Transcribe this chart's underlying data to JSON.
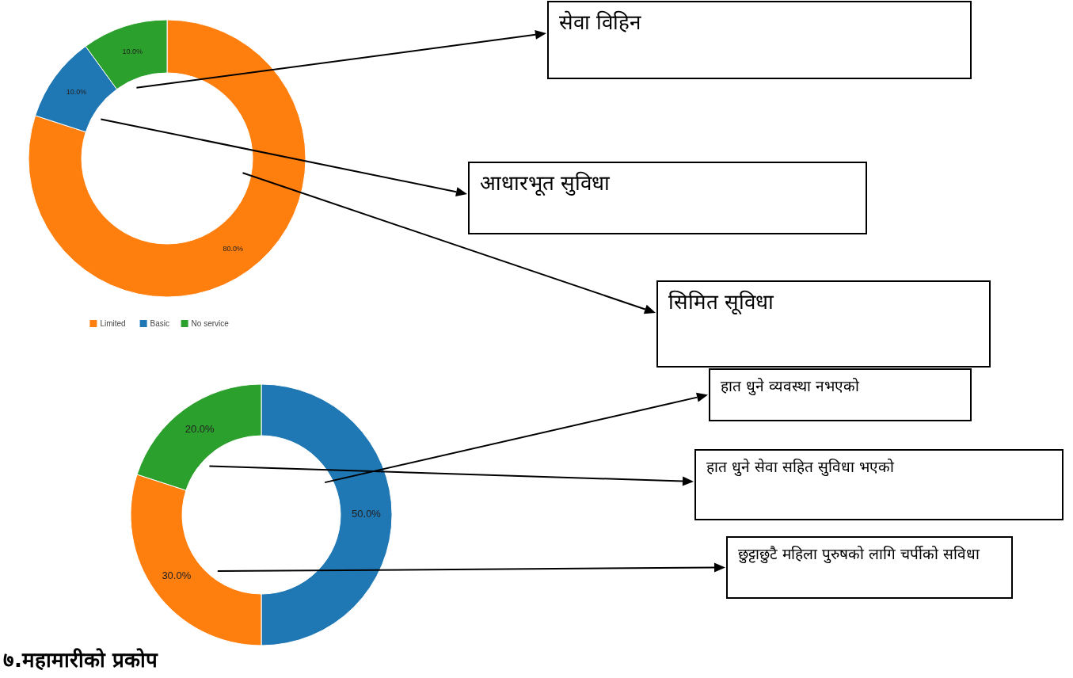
{
  "chart_data": [
    {
      "type": "donut",
      "categories": [
        "Limited",
        "Basic",
        "No service"
      ],
      "values": [
        80,
        10,
        10
      ],
      "colors": [
        "#ff7f0e",
        "#1f77b4",
        "#2ca02c"
      ],
      "value_labels": [
        "80.0%",
        "10.0%",
        "10.0%"
      ],
      "legend": "bottom",
      "annotations": [
        "सिमित सूविधा",
        "आधारभूत सुविधा",
        "सेवा विहिन"
      ]
    },
    {
      "type": "donut",
      "categories": [
        null,
        null,
        null
      ],
      "values": [
        50,
        30,
        20
      ],
      "colors": [
        "#1f77b4",
        "#ff7f0e",
        "#2ca02c"
      ],
      "value_labels": [
        "50.0%",
        "30.0%",
        "20.0%"
      ],
      "annotations": [
        "हात धुने व्यवस्था नभएको",
        "छुट्टाछुटै महिला पुरुषको लागि चर्पीको सविधा",
        "हात धुने सेवा सहित सुविधा भएको",
        "७.महामारीको प्रकोप"
      ]
    }
  ]
}
